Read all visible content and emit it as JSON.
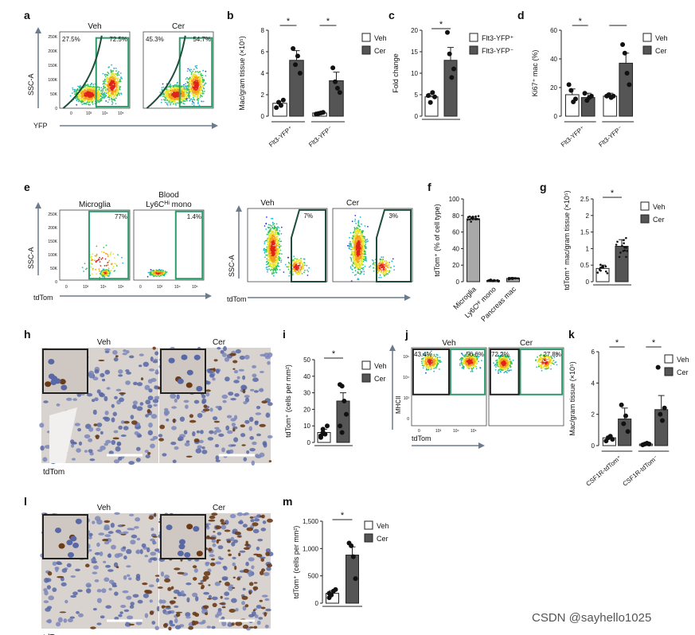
{
  "panel_labels": [
    "a",
    "b",
    "c",
    "d",
    "e",
    "f",
    "g",
    "h",
    "i",
    "j",
    "k",
    "l",
    "m"
  ],
  "watermark": "CSDN @sayhello1025",
  "micrograph_label": "tdTom",
  "sig_mark": "*",
  "colors": {
    "veh": "#ffffff",
    "cer": "#555555",
    "gate": "#2a9d6b",
    "axis": "#333333",
    "arrow": "#6b7b8c"
  },
  "flow": {
    "a": {
      "panels": [
        {
          "title": "Veh",
          "left_pct": "27.5%",
          "right_pct": "72.5%"
        },
        {
          "title": "Cer",
          "left_pct": "45.3%",
          "right_pct": "54.7%"
        }
      ],
      "ylabel": "SSC-A",
      "xlabel": "YFP",
      "yticks": [
        "250K",
        "200K",
        "150K",
        "100K",
        "50K",
        "0"
      ],
      "xticks": [
        "0",
        "10³",
        "10⁴",
        "10⁵"
      ]
    },
    "e1": {
      "panels": [
        {
          "title": "Microglia",
          "pct": "77%"
        },
        {
          "title": "Blood",
          "title2": "Ly6C",
          "title2_sup": "Hi",
          "title2_rest": " mono",
          "pct": "1.4%"
        }
      ],
      "ylabel": "SSC-A",
      "xlabel": "tdTom",
      "yticks": [
        "250K",
        "200K",
        "150K",
        "100K",
        "50K",
        "0"
      ],
      "xticks": [
        "0",
        "10³",
        "10⁴",
        "10⁵"
      ]
    },
    "e2": {
      "panels": [
        {
          "title": "Veh",
          "pct": "7%"
        },
        {
          "title": "Cer",
          "pct": "3%"
        }
      ],
      "ylabel": "SSC-A",
      "xlabel": "tdTom"
    },
    "j": {
      "panels": [
        {
          "title": "Veh",
          "left_pct": "43.4%",
          "right_pct": "56.6%"
        },
        {
          "title": "Cer",
          "left_pct": "72.2%",
          "right_pct": "27.8%"
        }
      ],
      "ylabel": "MHCII",
      "xlabel": "tdTom",
      "yticks": [
        "10⁵",
        "10⁴",
        "10³",
        "0"
      ],
      "xticks": [
        "0",
        "10³",
        "10⁴",
        "10⁵"
      ]
    }
  },
  "micro": {
    "h": {
      "panels": [
        {
          "title": "Veh"
        },
        {
          "title": "Cer"
        }
      ]
    },
    "l": {
      "panels": [
        {
          "title": "Veh"
        },
        {
          "title": "Cer"
        }
      ]
    }
  },
  "chart_data": [
    {
      "id": "b",
      "type": "bar",
      "ylabel": "Mac/gram tissue (×10⁵)",
      "ylim": [
        0,
        8
      ],
      "yticks": [
        0,
        2,
        4,
        6,
        8
      ],
      "groups": [
        "Flt3-YFP⁺",
        "Flt3-YFP⁻"
      ],
      "series": [
        {
          "name": "Veh",
          "values": [
            1.2,
            0.3
          ],
          "err": [
            0.2,
            0.05
          ]
        },
        {
          "name": "Cer",
          "values": [
            5.2,
            3.3
          ],
          "err": [
            0.9,
            0.8
          ]
        }
      ],
      "points": [
        [
          [
            0.8,
            1.3,
            1.0,
            1.5
          ],
          [
            6.3,
            4.8,
            5.6,
            4.0
          ]
        ],
        [
          [
            0.2,
            0.25,
            0.3,
            0.35
          ],
          [
            4.5,
            3.2,
            2.6,
            2.2
          ]
        ]
      ],
      "sig": [
        "*",
        "*"
      ],
      "legend": [
        "Veh",
        "Cer"
      ]
    },
    {
      "id": "c",
      "type": "bar",
      "ylabel": "Fold change",
      "ylim": [
        0,
        20
      ],
      "yticks": [
        0,
        5,
        10,
        15,
        20
      ],
      "categories": [
        "Flt3-YFP⁺",
        "Flt3-YFP⁻"
      ],
      "values": [
        4.5,
        13
      ],
      "err": [
        0.8,
        3.0
      ],
      "points": [
        [
          4.8,
          3.2,
          5.5,
          4.5
        ],
        [
          19.5,
          14.5,
          9.0,
          11.0
        ]
      ],
      "sig": [
        "*"
      ],
      "legend": [
        "Flt3-YFP⁺",
        "Flt3-YFP⁻"
      ]
    },
    {
      "id": "d",
      "type": "bar",
      "ylabel": "Ki67⁺ mac (%)",
      "ylim": [
        0,
        60
      ],
      "yticks": [
        0,
        20,
        40,
        60
      ],
      "groups": [
        "Flt3-YFP⁺",
        "Flt3-YFP⁻"
      ],
      "series": [
        {
          "name": "Veh",
          "values": [
            15,
            14
          ],
          "err": [
            4,
            2
          ]
        },
        {
          "name": "Cer",
          "values": [
            13,
            37
          ],
          "err": [
            3,
            7
          ]
        }
      ],
      "points": [
        [
          [
            22,
            18,
            10,
            12
          ],
          [
            16,
            11,
            13,
            14
          ]
        ],
        [
          [
            14,
            15,
            13,
            14
          ],
          [
            50,
            44,
            30,
            22
          ]
        ]
      ],
      "sig": [
        "*"
      ],
      "legend": [
        "Veh",
        "Cer"
      ]
    },
    {
      "id": "f",
      "type": "bar",
      "ylabel": "tdTom⁺ (% of cell type)",
      "ylim": [
        0,
        100
      ],
      "yticks": [
        0,
        20,
        40,
        60,
        80,
        100
      ],
      "categories": [
        "Microglia",
        "Ly6C^Hi mono",
        "Pancreas mac"
      ],
      "values": [
        76,
        1.5,
        4
      ],
      "err": [
        2,
        0.5,
        1
      ]
    },
    {
      "id": "g",
      "type": "bar",
      "ylabel": "tdTom⁺ mac/gram tissue (×10⁵)",
      "ylim": [
        0,
        2.5
      ],
      "yticks": [
        0,
        0.5,
        1.0,
        1.5,
        2.0,
        2.5
      ],
      "categories": [
        "Veh",
        "Cer"
      ],
      "values": [
        0.4,
        1.07
      ],
      "err": [
        0.1,
        0.2
      ],
      "sig": [
        "*"
      ],
      "legend": [
        "Veh",
        "Cer"
      ]
    },
    {
      "id": "i",
      "type": "bar",
      "ylabel": "tdTom⁺ (cells per mm²)",
      "ylim": [
        0,
        50
      ],
      "yticks": [
        0,
        10,
        20,
        30,
        40,
        50
      ],
      "categories": [
        "Veh",
        "Cer"
      ],
      "values": [
        6,
        25
      ],
      "err": [
        2,
        5
      ],
      "points": [
        [
          3,
          8,
          5,
          10,
          4,
          6
        ],
        [
          35,
          34,
          25,
          17,
          10,
          6
        ]
      ],
      "sig": [
        "*"
      ],
      "legend": [
        "Veh",
        "Cer"
      ]
    },
    {
      "id": "k",
      "type": "bar",
      "ylabel": "Mac/gram tissue (×10⁵)",
      "ylim": [
        0,
        6
      ],
      "yticks": [
        0,
        2,
        4,
        6
      ],
      "groups": [
        "CSF1R-tdTom⁺",
        "CSF1R-tdTom⁻"
      ],
      "series": [
        {
          "name": "Veh",
          "values": [
            0.5,
            0.1
          ],
          "err": [
            0.1,
            0.05
          ]
        },
        {
          "name": "Cer",
          "values": [
            1.7,
            2.3
          ],
          "err": [
            0.7,
            0.9
          ]
        }
      ],
      "points": [
        [
          [
            0.3,
            0.5,
            0.6,
            0.4
          ],
          [
            2.6,
            1.4,
            1.9,
            0.9
          ]
        ],
        [
          [
            0.05,
            0.1,
            0.15,
            0.1
          ],
          [
            5.0,
            2.0,
            1.6,
            2.4
          ]
        ]
      ],
      "sig": [
        "*",
        "*"
      ],
      "legend": [
        "Veh",
        "Cer"
      ]
    },
    {
      "id": "m",
      "type": "bar",
      "ylabel": "tdTom⁺ (cells per mm²)",
      "ylim": [
        0,
        1500
      ],
      "yticks": [
        "0",
        "500",
        "1,000",
        "1,500"
      ],
      "ytickvals": [
        0,
        500,
        1000,
        1500
      ],
      "categories": [
        "Veh",
        "Cer"
      ],
      "values": [
        180,
        880
      ],
      "err": [
        50,
        150
      ],
      "points": [
        [
          100,
          150,
          220,
          250,
          180
        ],
        [
          1100,
          1050,
          850,
          450
        ]
      ],
      "sig": [
        "*"
      ],
      "legend": [
        "Veh",
        "Cer"
      ]
    }
  ]
}
